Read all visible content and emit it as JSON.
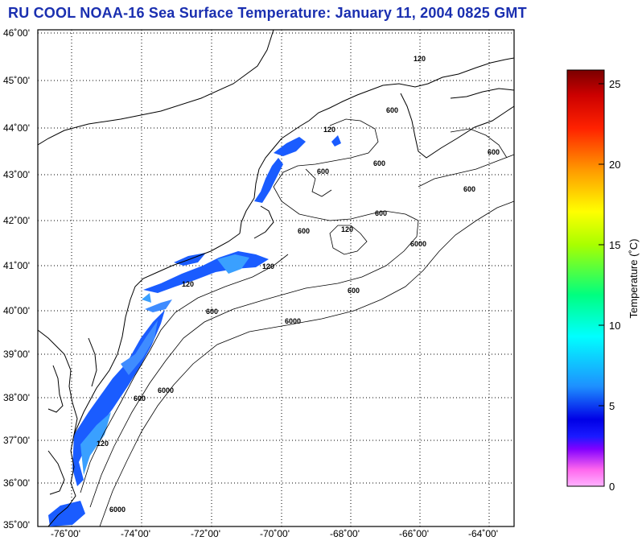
{
  "title": "RU COOL  NOAA-16  Sea Surface Temperature:  January 11, 2004 0825 GMT",
  "map": {
    "lat_labels": [
      "46˚00'",
      "45˚00'",
      "44˚00'",
      "43˚00'",
      "42˚00'",
      "41˚00'",
      "40˚00'",
      "39˚00'",
      "38˚00'",
      "37˚00'",
      "36˚00'",
      "35˚00'"
    ],
    "lon_labels": [
      "-76˚00'",
      "-74˚00'",
      "-72˚00'",
      "-70˚00'",
      "-68˚00'",
      "-66˚00'",
      "-64˚00'"
    ],
    "contour_labels": [
      "120",
      "600",
      "6000"
    ],
    "extent": {
      "lon_min": -77,
      "lon_max": -62.8,
      "lat_min": 35,
      "lat_max": 46
    }
  },
  "colorbar": {
    "label": "Temperature (˚C)",
    "ticks": [
      "25",
      "20",
      "15",
      "10",
      "5",
      "0"
    ],
    "range": [
      0,
      26
    ]
  },
  "colors": {
    "title": "#1a2fb0",
    "land": "#ffffff",
    "sst_cold": "#1a5cff",
    "sst_cool": "#3aa0ff"
  }
}
